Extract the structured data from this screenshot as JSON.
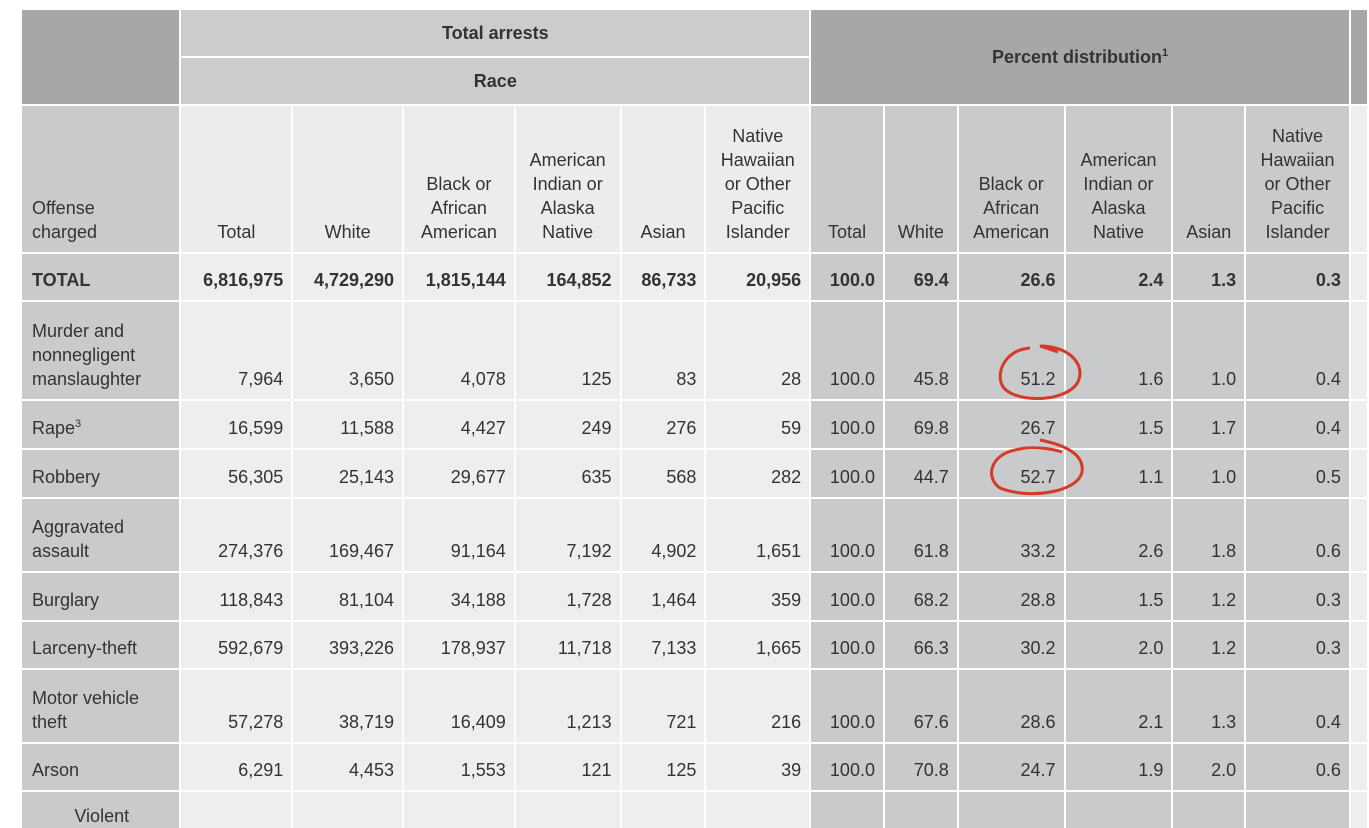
{
  "header_groups": {
    "total_arrests": "Total arrests",
    "race": "Race",
    "percent_distribution": {
      "text": "Percent distribution",
      "note": "1"
    }
  },
  "columns": {
    "offense": "Offense\ncharged",
    "counts": [
      "Total",
      "White",
      "Black or\nAfrican\nAmerican",
      "American\nIndian or\nAlaska\nNative",
      "Asian",
      "Native\nHawaiian\nor Other\nPacific\nIslander"
    ],
    "percents": [
      "Total",
      "White",
      "Black or\nAfrican\nAmerican",
      "American\nIndian or\nAlaska\nNative",
      "Asian",
      "Native\nHawaiian\nor Other\nPacific\nIslander"
    ]
  },
  "rows": [
    {
      "offense": "TOTAL",
      "counts": [
        "6,816,975",
        "4,729,290",
        "1,815,144",
        "164,852",
        "86,733",
        "20,956"
      ],
      "percents": [
        "100.0",
        "69.4",
        "26.6",
        "2.4",
        "1.3",
        "0.3"
      ]
    },
    {
      "offense": "Murder and\nnonnegligent\nmanslaughter",
      "counts": [
        "7,964",
        "3,650",
        "4,078",
        "125",
        "83",
        "28"
      ],
      "percents": [
        "100.0",
        "45.8",
        "51.2",
        "1.6",
        "1.0",
        "0.4"
      ]
    },
    {
      "offense": "Rape",
      "note": "3",
      "counts": [
        "16,599",
        "11,588",
        "4,427",
        "249",
        "276",
        "59"
      ],
      "percents": [
        "100.0",
        "69.8",
        "26.7",
        "1.5",
        "1.7",
        "0.4"
      ]
    },
    {
      "offense": "Robbery",
      "counts": [
        "56,305",
        "25,143",
        "29,677",
        "635",
        "568",
        "282"
      ],
      "percents": [
        "100.0",
        "44.7",
        "52.7",
        "1.1",
        "1.0",
        "0.5"
      ]
    },
    {
      "offense": "Aggravated\nassault",
      "counts": [
        "274,376",
        "169,467",
        "91,164",
        "7,192",
        "4,902",
        "1,651"
      ],
      "percents": [
        "100.0",
        "61.8",
        "33.2",
        "2.6",
        "1.8",
        "0.6"
      ]
    },
    {
      "offense": "Burglary",
      "counts": [
        "118,843",
        "81,104",
        "34,188",
        "1,728",
        "1,464",
        "359"
      ],
      "percents": [
        "100.0",
        "68.2",
        "28.8",
        "1.5",
        "1.2",
        "0.3"
      ]
    },
    {
      "offense": "Larceny-theft",
      "counts": [
        "592,679",
        "393,226",
        "178,937",
        "11,718",
        "7,133",
        "1,665"
      ],
      "percents": [
        "100.0",
        "66.3",
        "30.2",
        "2.0",
        "1.2",
        "0.3"
      ]
    },
    {
      "offense": "Motor vehicle\ntheft",
      "counts": [
        "57,278",
        "38,719",
        "16,409",
        "1,213",
        "721",
        "216"
      ],
      "percents": [
        "100.0",
        "67.6",
        "28.6",
        "2.1",
        "1.3",
        "0.4"
      ]
    },
    {
      "offense": "Arson",
      "counts": [
        "6,291",
        "4,453",
        "1,553",
        "121",
        "125",
        "39"
      ],
      "percents": [
        "100.0",
        "70.8",
        "24.7",
        "1.9",
        "2.0",
        "0.6"
      ]
    },
    {
      "offense": "Violent"
    }
  ]
}
